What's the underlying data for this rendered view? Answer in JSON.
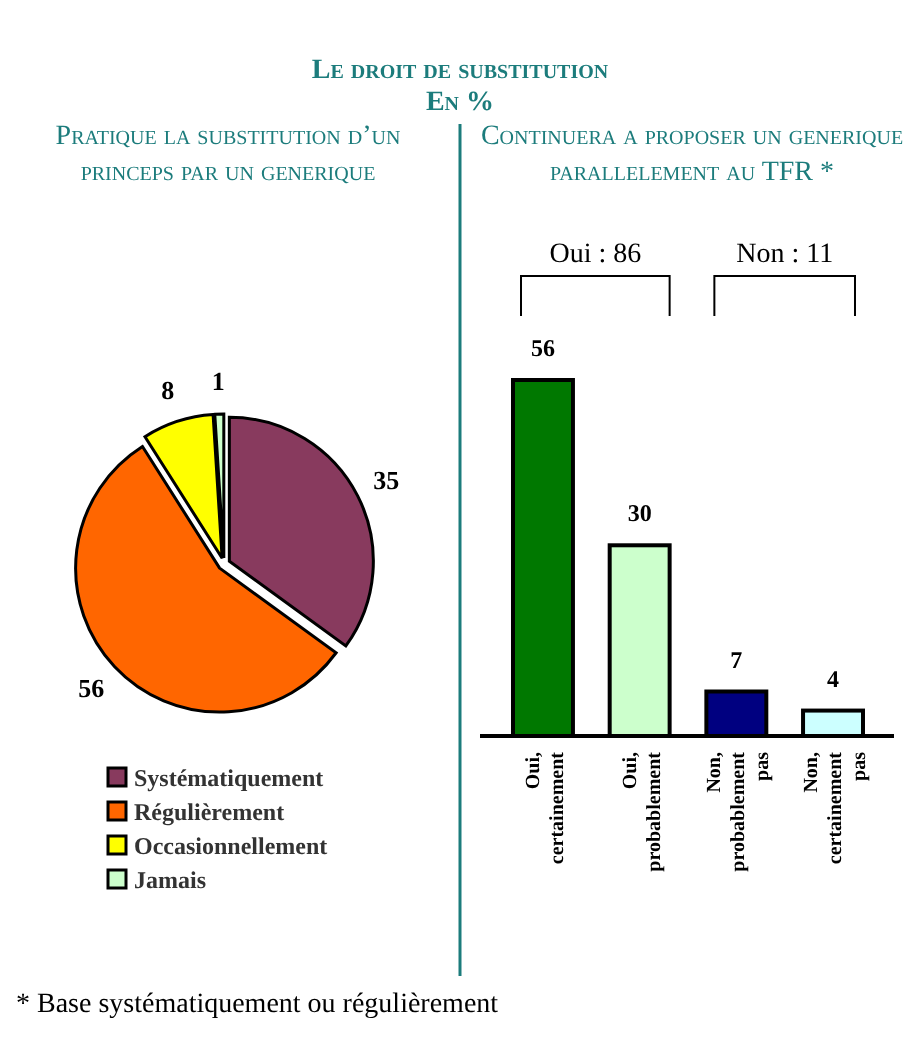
{
  "chart_data": [
    {
      "type": "pie",
      "title": "Le droit de substitution",
      "subtitle": "En %",
      "xlabel": "Pratique la substitution d’un princeps par un generique",
      "categories": [
        "Systématiquement",
        "Régulièrement",
        "Occasionnellement",
        "Jamais"
      ],
      "values": [
        35,
        56,
        8,
        1
      ],
      "colors": [
        "#883a5e",
        "#ff6600",
        "#ffff00",
        "#ccffcc"
      ],
      "data_labels": true,
      "legend": "bottom"
    },
    {
      "type": "bar",
      "title": "Continuera a proposer un generique parallelement au TFR *",
      "categories": [
        "Oui, certainement",
        "Oui, probablement",
        "Non, probablement pas",
        "Non, certainement pas"
      ],
      "values": [
        56,
        30,
        7,
        4
      ],
      "colors": [
        "#007800",
        "#ccffcc",
        "#000080",
        "#ccffff"
      ],
      "data_labels": true,
      "annotations": [
        "Oui : 86",
        "Non : 11",
        "* Base systématiquement ou régulièrement"
      ]
    }
  ]
}
